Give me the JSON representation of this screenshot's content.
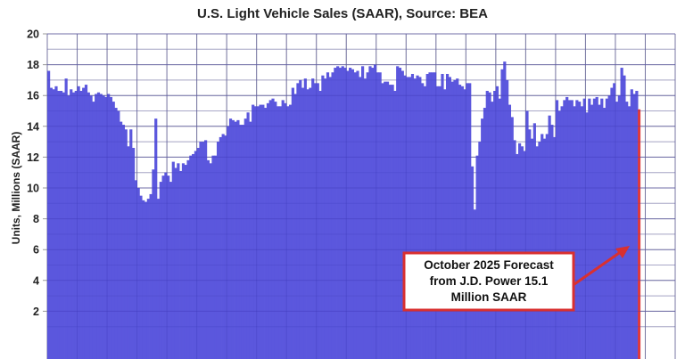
{
  "chart_data": {
    "type": "bar",
    "title": "U.S. Light Vehicle Sales (SAAR), Source: BEA",
    "xlabel": "",
    "ylabel": "Units, Millions (SAAR)",
    "ylim": [
      0,
      20
    ],
    "yticks": [
      2,
      4,
      6,
      8,
      10,
      12,
      14,
      16,
      18,
      20
    ],
    "grid": true,
    "x_frequency": "monthly",
    "x_start": "2006-01",
    "x_end": "2025-10",
    "xlim_years": [
      2006,
      2027
    ],
    "colors": {
      "bars": "#5b57dd",
      "forecast": "#e03a3a",
      "grid": "#b0b0b0",
      "annotation_border": "#d93030"
    },
    "series_by_year": {
      "2006": [
        17.6,
        16.5,
        16.4,
        16.6,
        16.3,
        16.3,
        16.2,
        17.1,
        16.0,
        16.4,
        16.2,
        16.3
      ],
      "2007": [
        16.6,
        16.3,
        16.5,
        16.7,
        16.2,
        16.0,
        15.6,
        16.1,
        16.2,
        16.1,
        16.0,
        15.9
      ],
      "2008": [
        16.1,
        15.9,
        15.6,
        15.2,
        15.0,
        14.3,
        14.1,
        13.8,
        12.7,
        13.8,
        12.6,
        10.5
      ],
      "2009": [
        10.0,
        9.5,
        9.2,
        9.1,
        9.3,
        9.6,
        11.2,
        14.5,
        9.3,
        10.4,
        10.8,
        11.0
      ],
      "2010": [
        10.8,
        10.4,
        11.7,
        11.3,
        11.6,
        11.1,
        11.6,
        11.5,
        11.8,
        12.1,
        12.2,
        12.4
      ],
      "2011": [
        12.6,
        13.0,
        13.0,
        13.1,
        11.8,
        11.6,
        12.1,
        12.1,
        13.0,
        13.3,
        13.5,
        13.4
      ],
      "2012": [
        14.0,
        14.5,
        14.4,
        14.3,
        14.4,
        14.1,
        14.1,
        14.5,
        14.9,
        14.3,
        15.4,
        15.3
      ],
      "2013": [
        15.3,
        15.4,
        15.4,
        15.2,
        15.5,
        15.7,
        15.8,
        15.6,
        15.3,
        15.3,
        15.7,
        15.5
      ],
      "2014": [
        15.3,
        15.4,
        16.5,
        16.1,
        16.8,
        17.0,
        16.5,
        17.1,
        16.4,
        16.5,
        17.1,
        16.8
      ],
      "2015": [
        16.8,
        16.3,
        17.3,
        17.1,
        17.5,
        17.2,
        17.5,
        17.8,
        17.9,
        17.8,
        17.9,
        17.8
      ],
      "2016": [
        17.6,
        17.8,
        17.7,
        17.5,
        17.6,
        17.2,
        17.9,
        17.1,
        17.5,
        17.9,
        17.8,
        18.0
      ],
      "2017": [
        17.5,
        17.5,
        16.8,
        16.9,
        16.9,
        16.7,
        16.7,
        16.3,
        17.9,
        17.8,
        17.6,
        17.3
      ],
      "2018": [
        17.2,
        17.2,
        17.4,
        17.1,
        17.3,
        17.2,
        16.8,
        16.6,
        17.4,
        17.5,
        17.5,
        17.5
      ],
      "2019": [
        16.6,
        16.6,
        17.4,
        16.4,
        17.4,
        17.2,
        16.9,
        17.0,
        17.1,
        16.7,
        16.6,
        16.4
      ],
      "2020": [
        16.8,
        16.8,
        11.4,
        8.6,
        12.1,
        13.0,
        14.5,
        15.2,
        16.3,
        16.2,
        15.6,
        16.3
      ],
      "2021": [
        16.6,
        15.8,
        17.7,
        18.2,
        17.0,
        15.4,
        14.6,
        13.1,
        12.2,
        12.9,
        12.7,
        12.4
      ],
      "2022": [
        15.0,
        13.8,
        13.2,
        14.2,
        12.7,
        13.0,
        13.5,
        13.2,
        13.5,
        14.7,
        14.1,
        13.3
      ],
      "2023": [
        15.7,
        15.0,
        15.3,
        15.7,
        15.9,
        15.7,
        15.7,
        15.3,
        15.7,
        15.6,
        15.3,
        15.8
      ],
      "2024": [
        14.9,
        15.8,
        15.4,
        15.8,
        15.9,
        15.4,
        15.8,
        15.2,
        15.8,
        16.0,
        16.5,
        16.8
      ],
      "2025": [
        15.6,
        16.0,
        17.8,
        17.3,
        15.6,
        15.3,
        16.4,
        16.1,
        16.3,
        15.1
      ]
    },
    "forecast": {
      "month": "2025-10",
      "value": 15.1
    },
    "annotation": {
      "lines": [
        "October 2025 Forecast",
        "from J.D. Power 15.1",
        "Million SAAR"
      ]
    }
  }
}
